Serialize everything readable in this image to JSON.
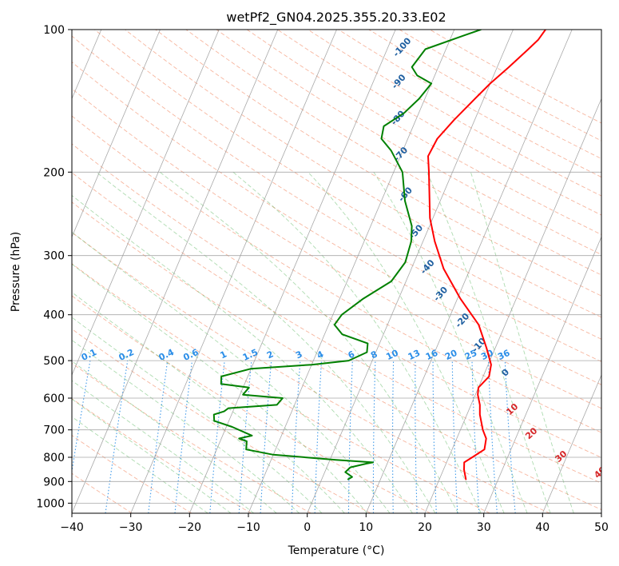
{
  "chart_data": {
    "type": "line",
    "title": "wetPf2_GN04.2025.355.20.33.E02",
    "xlabel": "Temperature (°C)",
    "ylabel": "Pressure (hPa)",
    "xlim": [
      -40,
      50
    ],
    "ylim": [
      1050,
      100
    ],
    "x_ticks": [
      -40,
      -30,
      -20,
      -10,
      0,
      10,
      20,
      30,
      40,
      50
    ],
    "x_tick_labels": [
      "−40",
      "−30",
      "−20",
      "−10",
      "0",
      "10",
      "20",
      "30",
      "40",
      "50"
    ],
    "y_ticks": [
      1000,
      900,
      800,
      700,
      600,
      500,
      400,
      300,
      200,
      100
    ],
    "y_tick_labels": [
      "1000",
      "900",
      "800",
      "700",
      "600",
      "500",
      "400",
      "300",
      "200",
      "100"
    ],
    "y_scale": "log",
    "grid": true,
    "dry_adiabat_labels": [
      "-100",
      "-90",
      "-80",
      "-70",
      "-60",
      "-50",
      "-40",
      "-30",
      "-20",
      "-10",
      "0"
    ],
    "dry_adiabat_label_points": [
      {
        "t": -17.1,
        "p": 110
      },
      {
        "t": -15.2,
        "p": 130
      },
      {
        "t": -12.7,
        "p": 155
      },
      {
        "t": -9.6,
        "p": 185
      },
      {
        "t": -5.9,
        "p": 225
      },
      {
        "t": -1.4,
        "p": 270
      },
      {
        "t": 3.1,
        "p": 320
      },
      {
        "t": 7.3,
        "p": 365
      },
      {
        "t": 12.9,
        "p": 415
      },
      {
        "t": 17.5,
        "p": 468
      },
      {
        "t": 24.0,
        "p": 535
      }
    ],
    "moist_adiabat_labels": [
      "10",
      "20",
      "30",
      "40"
    ],
    "moist_adiabat_label_points": [
      {
        "t": 27.8,
        "p": 640
      },
      {
        "t": 32.8,
        "p": 720
      },
      {
        "t": 39.5,
        "p": 805
      },
      {
        "t": 47.3,
        "p": 870
      }
    ],
    "mixing_ratio_labels": [
      "0.1",
      "0.2",
      "0.4",
      "0.6",
      "1",
      "1.5",
      "2",
      "3",
      "4",
      "6",
      "8",
      "10",
      "13",
      "16",
      "20",
      "25",
      "30",
      "36"
    ],
    "series": [
      {
        "color": "#ff0000",
        "points": [
          [
            24.5,
            890
          ],
          [
            23.5,
            850
          ],
          [
            23.0,
            820
          ],
          [
            24.0,
            800
          ],
          [
            25.5,
            770
          ],
          [
            25.0,
            730
          ],
          [
            23.8,
            700
          ],
          [
            22.2,
            650
          ],
          [
            21.5,
            620
          ],
          [
            20.4,
            590
          ],
          [
            20.0,
            570
          ],
          [
            21.0,
            540
          ],
          [
            20.5,
            510
          ],
          [
            18.5,
            470
          ],
          [
            15.5,
            420
          ],
          [
            10.5,
            370
          ],
          [
            5.5,
            320
          ],
          [
            2.0,
            280
          ],
          [
            -0.5,
            250
          ],
          [
            -4.0,
            200
          ],
          [
            -5.3,
            185
          ],
          [
            -5.0,
            170
          ],
          [
            -3.5,
            155
          ],
          [
            -1.5,
            140
          ],
          [
            0.0,
            130
          ],
          [
            2.0,
            120
          ],
          [
            4.0,
            110
          ],
          [
            5.0,
            105
          ],
          [
            5.5,
            100
          ]
        ]
      },
      {
        "color": "#008000",
        "points": [
          [
            4.5,
            890
          ],
          [
            5.0,
            880
          ],
          [
            3.5,
            860
          ],
          [
            4.0,
            840
          ],
          [
            6.5,
            825
          ],
          [
            7.5,
            820
          ],
          [
            1.0,
            810
          ],
          [
            -10.0,
            790
          ],
          [
            -15.0,
            770
          ],
          [
            -15.5,
            740
          ],
          [
            -17.0,
            730
          ],
          [
            -15.0,
            720
          ],
          [
            -19.0,
            690
          ],
          [
            -22.5,
            670
          ],
          [
            -23.0,
            650
          ],
          [
            -21.5,
            640
          ],
          [
            -21.0,
            630
          ],
          [
            -13.0,
            620
          ],
          [
            -12.5,
            600
          ],
          [
            -19.5,
            590
          ],
          [
            -19.0,
            570
          ],
          [
            -24.0,
            560
          ],
          [
            -24.5,
            540
          ],
          [
            -20.0,
            520
          ],
          [
            -10.0,
            510
          ],
          [
            -4.0,
            500
          ],
          [
            -1.5,
            480
          ],
          [
            -2.0,
            460
          ],
          [
            -7.0,
            440
          ],
          [
            -9.0,
            420
          ],
          [
            -8.5,
            400
          ],
          [
            -6.0,
            370
          ],
          [
            -2.5,
            340
          ],
          [
            -1.5,
            310
          ],
          [
            -2.0,
            280
          ],
          [
            -3.0,
            260
          ],
          [
            -6.0,
            230
          ],
          [
            -8.5,
            200
          ],
          [
            -12.0,
            180
          ],
          [
            -14.5,
            170
          ],
          [
            -15.0,
            160
          ],
          [
            -12.5,
            150
          ],
          [
            -11.0,
            140
          ],
          [
            -10.0,
            130
          ],
          [
            -13.0,
            125
          ],
          [
            -14.5,
            120
          ],
          [
            -13.5,
            110
          ],
          [
            -8.0,
            103
          ],
          [
            -5.5,
            100
          ]
        ]
      }
    ]
  }
}
